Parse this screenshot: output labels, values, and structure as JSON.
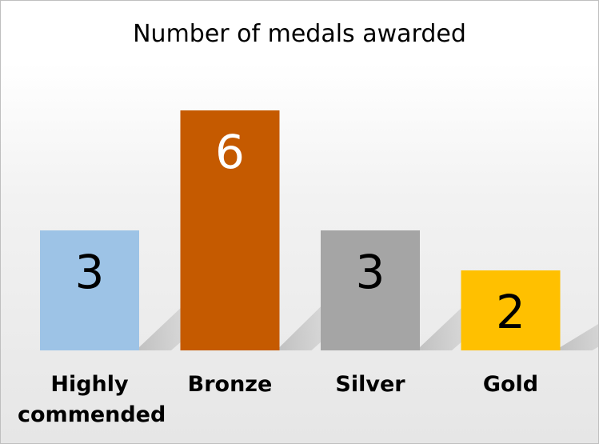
{
  "chart_data": {
    "type": "bar",
    "title": "Number of medals awarded",
    "xlabel": "",
    "ylabel": "",
    "categories": [
      "Highly commended",
      "Bronze",
      "Silver",
      "Gold"
    ],
    "category_lines": [
      [
        "Highly",
        "commended"
      ],
      [
        "Bronze"
      ],
      [
        "Silver"
      ],
      [
        "Gold"
      ]
    ],
    "values": [
      3,
      6,
      3,
      2
    ],
    "data_labels": [
      "3",
      "6",
      "3",
      "2"
    ],
    "colors": [
      "#9dc3e6",
      "#c55a00",
      "#a5a5a5",
      "#ffc000"
    ],
    "label_colors": [
      "#000000",
      "#ffffff",
      "#000000",
      "#000000"
    ],
    "ylim": [
      0,
      6
    ],
    "grid": false,
    "legend": "none"
  }
}
